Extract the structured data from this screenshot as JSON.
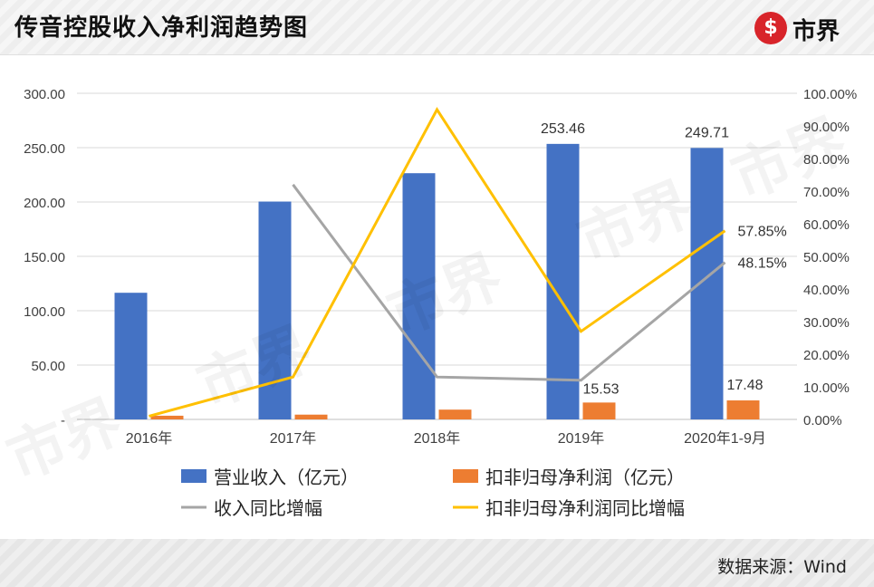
{
  "header": {
    "title": "传音控股收入净利润趋势图",
    "logo_icon_glyph": "$",
    "logo_text": "市界"
  },
  "footer": {
    "source": "数据来源：Wind"
  },
  "colors": {
    "revenue_bar": "#4472c4",
    "profit_bar": "#ed7d31",
    "revenue_growth_line": "#a5a5a5",
    "profit_growth_line": "#ffc000",
    "logo_red": "#d8242a"
  },
  "chart_data": {
    "type": "bar",
    "categories": [
      "2016年",
      "2017年",
      "2018年",
      "2019年",
      "2020年1-9月"
    ],
    "series": [
      {
        "name": "营业收入（亿元）",
        "kind": "bar",
        "axis": "left",
        "values": [
          116.5,
          200.4,
          226.5,
          253.46,
          249.71
        ]
      },
      {
        "name": "扣非归母净利润（亿元）",
        "kind": "bar",
        "axis": "left",
        "values": [
          3.4,
          4.4,
          9.0,
          15.53,
          17.48
        ]
      },
      {
        "name": "收入同比增幅",
        "kind": "line",
        "axis": "right",
        "values": [
          null,
          72.0,
          13.0,
          12.0,
          48.15
        ]
      },
      {
        "name": "扣非归母净利润同比增幅",
        "kind": "line",
        "axis": "right",
        "values": [
          1.0,
          13.0,
          95.0,
          27.0,
          57.85
        ]
      }
    ],
    "left_axis": {
      "ylim": [
        0,
        300
      ],
      "ticks": [
        "-",
        "50.00",
        "100.00",
        "150.00",
        "200.00",
        "250.00",
        "300.00"
      ]
    },
    "right_axis": {
      "ylim": [
        0,
        100
      ],
      "ticks": [
        "0.00%",
        "10.00%",
        "20.00%",
        "30.00%",
        "40.00%",
        "50.00%",
        "60.00%",
        "70.00%",
        "80.00%",
        "90.00%",
        "100.00%"
      ]
    },
    "data_labels": [
      "253.46",
      "249.71",
      "15.53",
      "17.48",
      "57.85%",
      "48.15%"
    ],
    "grid": true,
    "legend_position": "bottom"
  }
}
